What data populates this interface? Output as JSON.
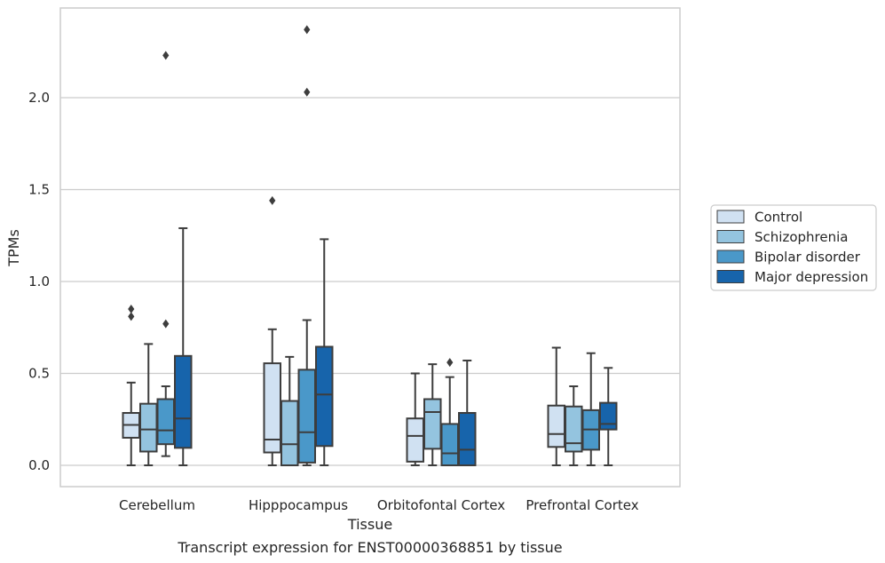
{
  "chart_data": {
    "type": "boxplot",
    "title": "",
    "caption": "Transcript expression for ENST00000368851 by tissue",
    "xlabel": "Tissue",
    "ylabel": "TPMs",
    "ylim": [
      -0.12,
      2.5
    ],
    "yticks": [
      0.0,
      0.5,
      1.0,
      1.5,
      2.0
    ],
    "ytick_labels": [
      "0.0",
      "0.5",
      "1.0",
      "1.5",
      "2.0"
    ],
    "grid": "horizontal",
    "legend_position": "right",
    "categories": [
      "Cerebellum",
      "Hipppocampus",
      "Orbitofontal Cortex",
      "Prefrontal Cortex"
    ],
    "series": [
      {
        "name": "Control",
        "color": "#d0e1f2",
        "boxes": [
          {
            "whislo": 0.0,
            "q1": 0.15,
            "med": 0.22,
            "q3": 0.285,
            "whishi": 0.45,
            "fliers": []
          },
          {
            "whislo": 0.0,
            "q1": 0.07,
            "med": 0.14,
            "q3": 0.555,
            "whishi": 0.74,
            "fliers": [
              1.44
            ]
          },
          {
            "whislo": 0.0,
            "q1": 0.02,
            "med": 0.16,
            "q3": 0.255,
            "whishi": 0.5,
            "fliers": []
          },
          {
            "whislo": 0.0,
            "q1": 0.1,
            "med": 0.17,
            "q3": 0.325,
            "whishi": 0.64,
            "fliers": []
          }
        ]
      },
      {
        "name": "Schizophrenia",
        "color": "#94c4df",
        "boxes": [
          {
            "whislo": 0.0,
            "q1": 0.075,
            "med": 0.195,
            "q3": 0.335,
            "whishi": 0.66,
            "fliers": []
          },
          {
            "whislo": 0.0,
            "q1": 0.0,
            "med": 0.115,
            "q3": 0.35,
            "whishi": 0.59,
            "fliers": []
          },
          {
            "whislo": 0.0,
            "q1": 0.09,
            "med": 0.29,
            "q3": 0.36,
            "whishi": 0.55,
            "fliers": []
          },
          {
            "whislo": 0.0,
            "q1": 0.075,
            "med": 0.12,
            "q3": 0.32,
            "whishi": 0.43,
            "fliers": []
          }
        ]
      },
      {
        "name": "Bipolar disorder",
        "color": "#4a98c9",
        "boxes": [
          {
            "whislo": 0.05,
            "q1": 0.115,
            "med": 0.19,
            "q3": 0.36,
            "whishi": 0.43,
            "fliers": [
              0.77,
              2.23
            ]
          },
          {
            "whislo": 0.0,
            "q1": 0.015,
            "med": 0.18,
            "q3": 0.52,
            "whishi": 0.79,
            "fliers": [
              2.03,
              2.37
            ]
          },
          {
            "whislo": 0.0,
            "q1": 0.0,
            "med": 0.065,
            "q3": 0.225,
            "whishi": 0.48,
            "fliers": [
              0.56
            ]
          },
          {
            "whislo": 0.0,
            "q1": 0.085,
            "med": 0.195,
            "q3": 0.3,
            "whishi": 0.61,
            "fliers": []
          }
        ]
      },
      {
        "name": "Major depression",
        "color": "#1764ab",
        "boxes": [
          {
            "whislo": 0.0,
            "q1": 0.095,
            "med": 0.255,
            "q3": 0.595,
            "whishi": 1.29,
            "fliers": []
          },
          {
            "whislo": 0.0,
            "q1": 0.105,
            "med": 0.385,
            "q3": 0.645,
            "whishi": 1.23,
            "fliers": []
          },
          {
            "whislo": 0.0,
            "q1": 0.0,
            "med": 0.085,
            "q3": 0.285,
            "whishi": 0.57,
            "fliers": []
          },
          {
            "whislo": 0.0,
            "q1": 0.195,
            "med": 0.225,
            "q3": 0.34,
            "whishi": 0.53,
            "fliers": []
          }
        ]
      }
    ],
    "extra_fliers": [
      {
        "category": "Cerebellum",
        "series": "Control",
        "values": [
          0.81,
          0.85
        ]
      }
    ]
  }
}
